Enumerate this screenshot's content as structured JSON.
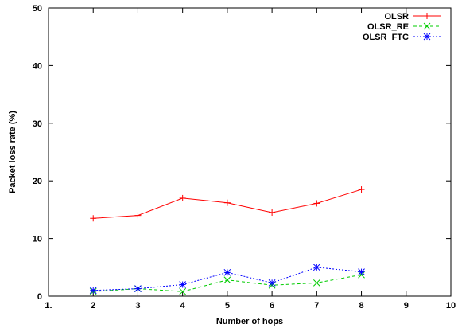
{
  "chart_data": {
    "type": "line",
    "title": "",
    "xlabel": "Number of hops",
    "ylabel": "Packet loss rate (%)",
    "xlim": [
      1,
      10
    ],
    "ylim": [
      0,
      50
    ],
    "xticks": [
      1,
      2,
      3,
      4,
      5,
      6,
      7,
      8,
      9,
      10
    ],
    "xtick_labels": [
      "1.",
      "2",
      "3",
      "4",
      "5",
      "6",
      "7",
      "8",
      "9",
      "10"
    ],
    "yticks": [
      0,
      10,
      20,
      30,
      40,
      50
    ],
    "ytick_labels": [
      "0",
      "10",
      "20",
      "30",
      "40",
      "50"
    ],
    "grid": false,
    "legend_position": "top-right",
    "x": [
      2,
      3,
      4,
      5,
      6,
      7,
      8
    ],
    "series": [
      {
        "name": "OLSR",
        "color": "#ff0000",
        "marker": "plus",
        "dash": "solid",
        "values": [
          13.5,
          14.0,
          17.0,
          16.2,
          14.5,
          16.1,
          18.5
        ]
      },
      {
        "name": "OLSR_RE",
        "color": "#00cc00",
        "marker": "cross",
        "dash": "dashed",
        "values": [
          0.8,
          1.3,
          0.8,
          2.8,
          1.9,
          2.3,
          3.7
        ]
      },
      {
        "name": "OLSR_FTC",
        "color": "#0000ff",
        "marker": "star",
        "dash": "dotted",
        "values": [
          1.0,
          1.3,
          2.0,
          4.1,
          2.3,
          5.0,
          4.2
        ]
      }
    ]
  }
}
